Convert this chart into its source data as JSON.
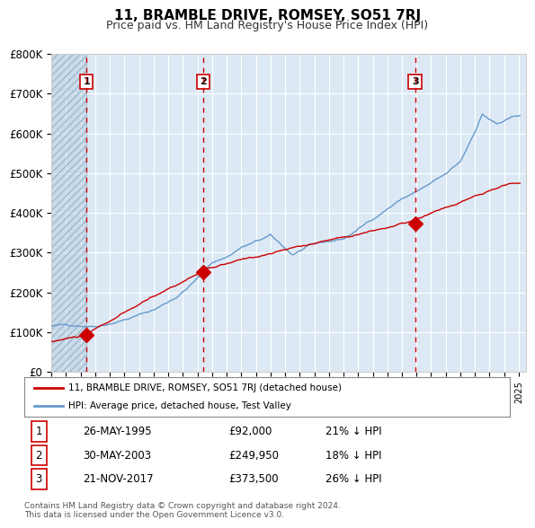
{
  "title": "11, BRAMBLE DRIVE, ROMSEY, SO51 7RJ",
  "subtitle": "Price paid vs. HM Land Registry's House Price Index (HPI)",
  "xlabel": "",
  "ylabel": "",
  "ylim": [
    0,
    800000
  ],
  "yticks": [
    0,
    100000,
    200000,
    300000,
    400000,
    500000,
    600000,
    700000,
    800000
  ],
  "ytick_labels": [
    "£0",
    "£100K",
    "£200K",
    "£300K",
    "£400K",
    "£500K",
    "£600K",
    "£700K",
    "£800K"
  ],
  "bg_color": "#dce9f5",
  "plot_bg_color": "#dce9f5",
  "hatch_color": "#b0c4d8",
  "grid_color": "#ffffff",
  "red_line_color": "#cc0000",
  "blue_line_color": "#6699cc",
  "sale_marker_color": "#cc0000",
  "dashed_line_color": "#cc0000",
  "box_edge_color": "#cc0000",
  "sale_points": [
    {
      "date_num": 1995.4,
      "price": 92000,
      "label": "1"
    },
    {
      "date_num": 2003.4,
      "price": 249950,
      "label": "2"
    },
    {
      "date_num": 2017.9,
      "price": 373500,
      "label": "3"
    }
  ],
  "legend_house_label": "11, BRAMBLE DRIVE, ROMSEY, SO51 7RJ (detached house)",
  "legend_hpi_label": "HPI: Average price, detached house, Test Valley",
  "table_rows": [
    {
      "num": "1",
      "date": "26-MAY-1995",
      "price": "£92,000",
      "hpi": "21% ↓ HPI"
    },
    {
      "num": "2",
      "date": "30-MAY-2003",
      "price": "£249,950",
      "hpi": "18% ↓ HPI"
    },
    {
      "num": "3",
      "date": "21-NOV-2017",
      "price": "£373,500",
      "hpi": "26% ↓ HPI"
    }
  ],
  "footnote": "Contains HM Land Registry data © Crown copyright and database right 2024.\nThis data is licensed under the Open Government Licence v3.0.",
  "xmin": 1993,
  "xmax": 2025.5
}
